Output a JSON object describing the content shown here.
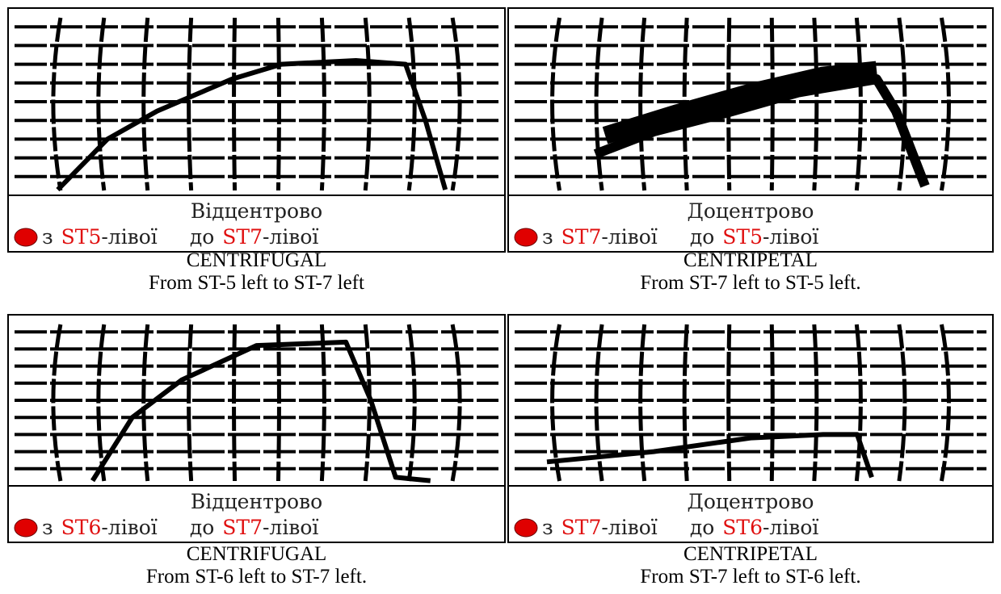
{
  "panels": [
    {
      "title": "Відцентрово",
      "from_word": "з",
      "from_st": "ST5",
      "from_suffix": "-лівої",
      "to_word": "до",
      "to_st": "ST7",
      "to_suffix": "-лівої",
      "caption_1": "CENTRIFUGAL",
      "caption_2": "From ST-5 left to ST-7 left"
    },
    {
      "title": "Доцентрово",
      "from_word": "з",
      "from_st": "ST7",
      "from_suffix": "-лівої",
      "to_word": "до",
      "to_st": "ST5",
      "to_suffix": "-лівої",
      "caption_1": "CENTRIPETAL",
      "caption_2": "From ST-7 left to ST-5 left."
    },
    {
      "title": "Відцентрово",
      "from_word": "з",
      "from_st": "ST6",
      "from_suffix": "-лівої",
      "to_word": "до",
      "to_st": "ST7",
      "to_suffix": "-лівої",
      "caption_1": "CENTRIFUGAL",
      "caption_2": "From ST-6 left to ST-7 left."
    },
    {
      "title": "Доцентрово",
      "from_word": "з",
      "from_st": "ST7",
      "from_suffix": "-лівої",
      "to_word": "до",
      "to_st": "ST6",
      "to_suffix": "-лівої",
      "caption_1": "CENTRIPETAL",
      "caption_2": "From ST-7 left to ST-6 left."
    }
  ]
}
